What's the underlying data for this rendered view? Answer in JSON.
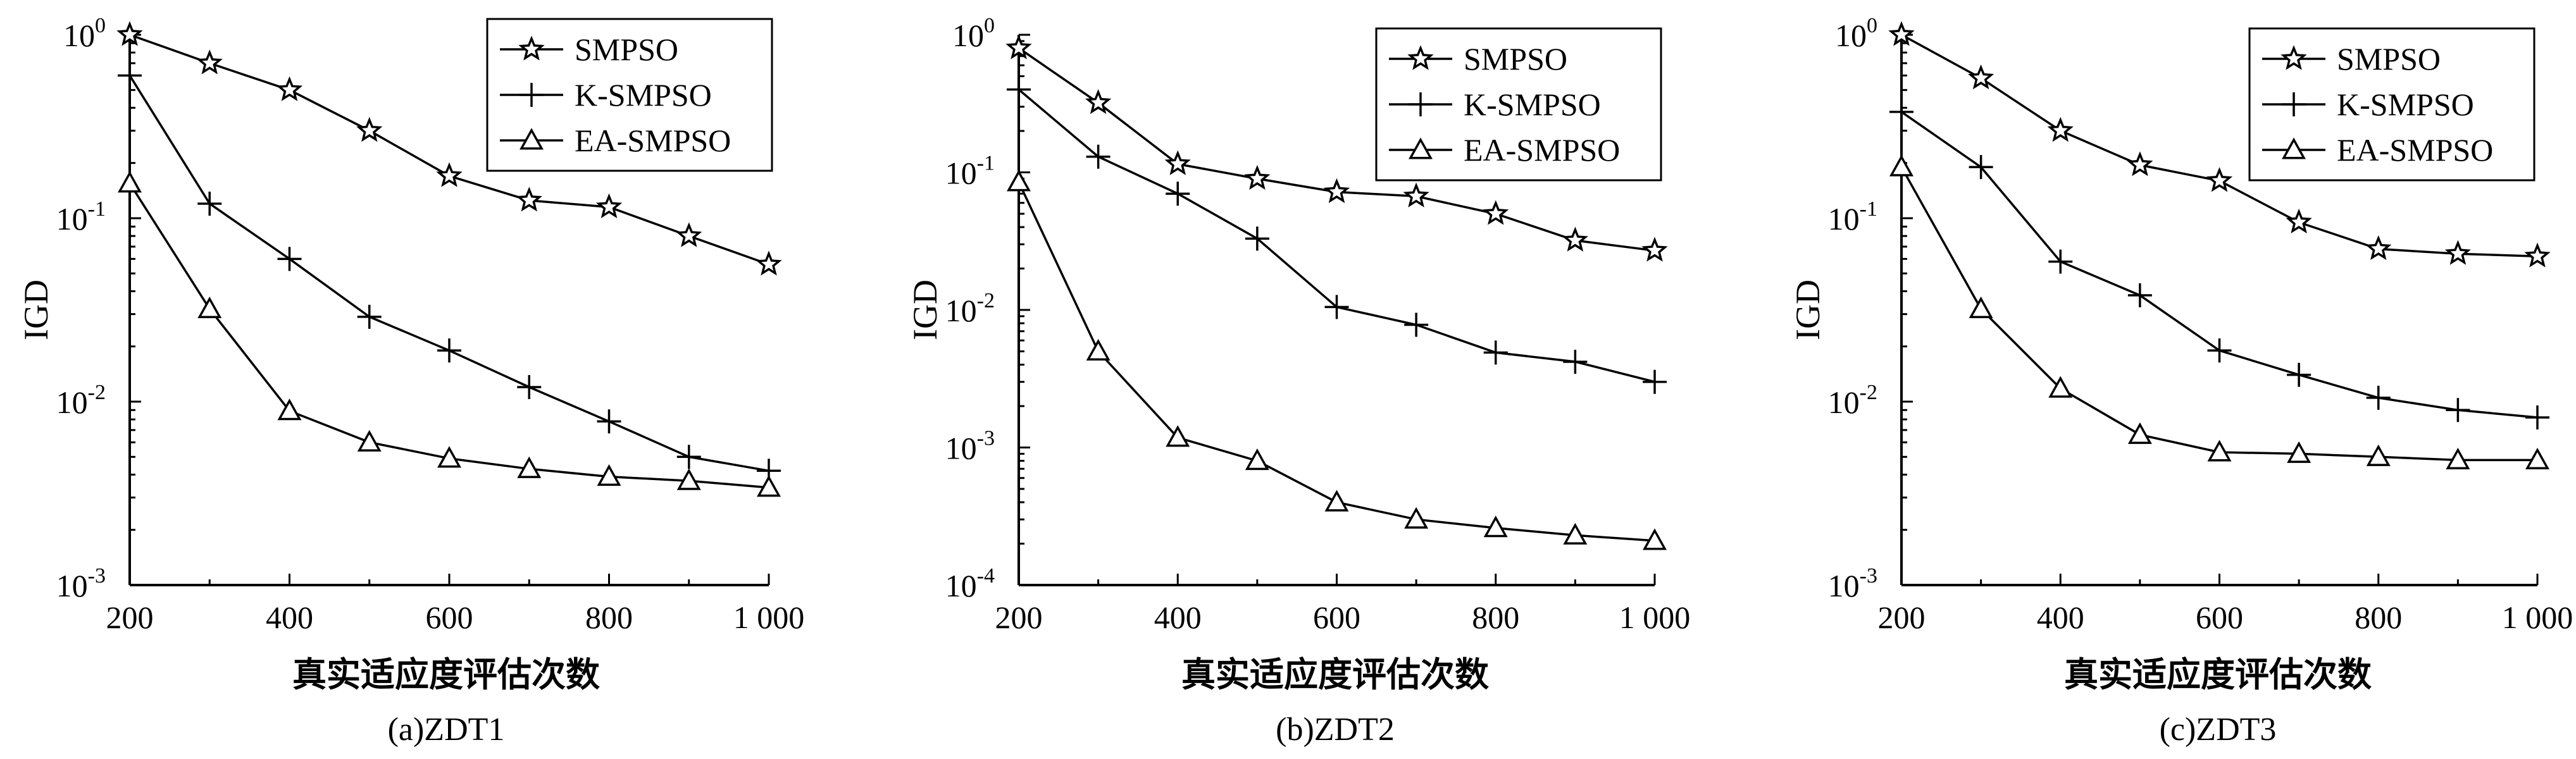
{
  "chart_data": [
    {
      "type": "line",
      "caption": "(a)ZDT1",
      "xlabel": "真实适应度评估次数",
      "ylabel": "IGD",
      "yscale": "log",
      "ylim": [
        0.001,
        1
      ],
      "yticks": [
        {
          "base": "10",
          "exp": "0"
        },
        {
          "base": "10",
          "exp": "-1"
        },
        {
          "base": "10",
          "exp": "-2"
        },
        {
          "base": "10",
          "exp": "-3"
        }
      ],
      "xlim": [
        200,
        1000
      ],
      "xticks": [
        "200",
        "400",
        "600",
        "800",
        "1 000"
      ],
      "legend_position": "top-right",
      "x": [
        200,
        300,
        400,
        500,
        600,
        700,
        800,
        900,
        1000
      ],
      "series": [
        {
          "name": "SMPSO",
          "marker": "star",
          "values": [
            1.0,
            0.7,
            0.5,
            0.3,
            0.17,
            0.125,
            0.115,
            0.08,
            0.056
          ]
        },
        {
          "name": "K-SMPSO",
          "marker": "plus",
          "values": [
            0.6,
            0.12,
            0.06,
            0.029,
            0.019,
            0.012,
            0.0078,
            0.005,
            0.0042
          ]
        },
        {
          "name": "EA-SMPSO",
          "marker": "triangle",
          "values": [
            0.155,
            0.032,
            0.0089,
            0.006,
            0.0049,
            0.0043,
            0.0039,
            0.0037,
            0.0034
          ]
        }
      ]
    },
    {
      "type": "line",
      "caption": "(b)ZDT2",
      "xlabel": "真实适应度评估次数",
      "ylabel": "IGD",
      "yscale": "log",
      "ylim": [
        0.0001,
        1
      ],
      "yticks": [
        {
          "base": "10",
          "exp": "0"
        },
        {
          "base": "10",
          "exp": "-1"
        },
        {
          "base": "10",
          "exp": "-2"
        },
        {
          "base": "10",
          "exp": "-3"
        },
        {
          "base": "10",
          "exp": "-4"
        }
      ],
      "xlim": [
        200,
        1000
      ],
      "xticks": [
        "200",
        "400",
        "600",
        "800",
        "1 000"
      ],
      "legend_position": "top-right",
      "x": [
        200,
        300,
        400,
        500,
        600,
        700,
        800,
        900,
        1000
      ],
      "series": [
        {
          "name": "SMPSO",
          "marker": "star",
          "values": [
            0.8,
            0.32,
            0.115,
            0.09,
            0.072,
            0.067,
            0.05,
            0.032,
            0.027
          ]
        },
        {
          "name": "K-SMPSO",
          "marker": "plus",
          "values": [
            0.4,
            0.13,
            0.07,
            0.033,
            0.0105,
            0.0078,
            0.0049,
            0.0042,
            0.003
          ]
        },
        {
          "name": "EA-SMPSO",
          "marker": "triangle",
          "values": [
            0.085,
            0.005,
            0.00118,
            0.0008,
            0.0004,
            0.0003,
            0.00026,
            0.00023,
            0.00021
          ]
        }
      ]
    },
    {
      "type": "line",
      "caption": "(c)ZDT3",
      "xlabel": "真实适应度评估次数",
      "ylabel": "IGD",
      "yscale": "log",
      "ylim": [
        0.001,
        1
      ],
      "yticks": [
        {
          "base": "10",
          "exp": "0"
        },
        {
          "base": "10",
          "exp": "-1"
        },
        {
          "base": "10",
          "exp": "-2"
        },
        {
          "base": "10",
          "exp": "-3"
        }
      ],
      "xlim": [
        200,
        1000
      ],
      "xticks": [
        "200",
        "400",
        "600",
        "800",
        "1 000"
      ],
      "legend_position": "top-right",
      "x": [
        200,
        300,
        400,
        500,
        600,
        700,
        800,
        900,
        1000
      ],
      "series": [
        {
          "name": "SMPSO",
          "marker": "star",
          "values": [
            1.0,
            0.58,
            0.3,
            0.195,
            0.16,
            0.095,
            0.068,
            0.064,
            0.062
          ]
        },
        {
          "name": "K-SMPSO",
          "marker": "plus",
          "values": [
            0.38,
            0.19,
            0.058,
            0.038,
            0.019,
            0.014,
            0.0105,
            0.009,
            0.0082
          ]
        },
        {
          "name": "EA-SMPSO",
          "marker": "triangle",
          "values": [
            0.19,
            0.032,
            0.0118,
            0.0066,
            0.0053,
            0.0052,
            0.005,
            0.0048,
            0.0048
          ]
        }
      ]
    }
  ]
}
